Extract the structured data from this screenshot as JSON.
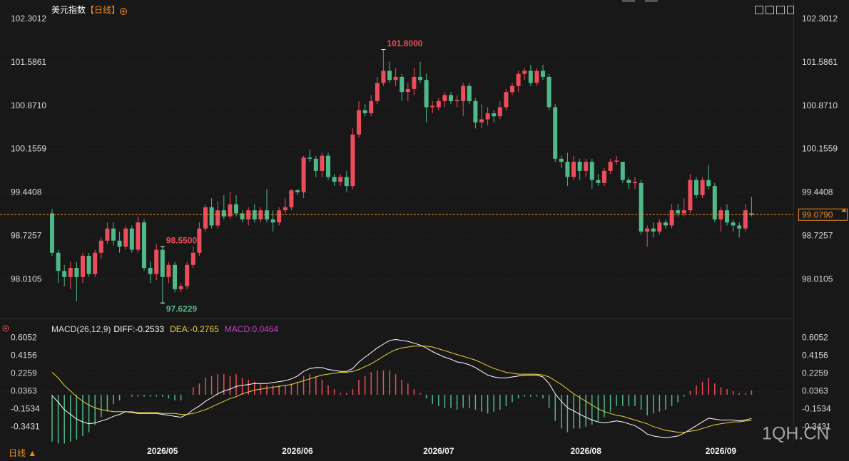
{
  "chart_data": [
    {
      "type": "candlestick",
      "title": "美元指数",
      "period": "【日线】",
      "categories": [
        null,
        null,
        null,
        null,
        null,
        null,
        null,
        null,
        null,
        null,
        null,
        null,
        null,
        null,
        null,
        null,
        null,
        null,
        "2026/05",
        null,
        null,
        null,
        null,
        null,
        null,
        null,
        null,
        null,
        null,
        null,
        null,
        null,
        null,
        null,
        null,
        null,
        null,
        null,
        null,
        null,
        "2026/06",
        null,
        null,
        null,
        null,
        null,
        null,
        null,
        null,
        null,
        null,
        null,
        null,
        null,
        null,
        null,
        null,
        null,
        null,
        null,
        null,
        null,
        null,
        "2026/07",
        null,
        null,
        null,
        null,
        null,
        null,
        null,
        null,
        null,
        null,
        null,
        null,
        null,
        null,
        null,
        null,
        null,
        null,
        null,
        null,
        null,
        null,
        null,
        "2026/08",
        null,
        null,
        null,
        null,
        null,
        null,
        null,
        null,
        null,
        null,
        null,
        null,
        null,
        null,
        null,
        null,
        null,
        null,
        null,
        null,
        null,
        "2026/09",
        null,
        null,
        null,
        null,
        null
      ],
      "open": [
        99.1,
        98.45,
        98.15,
        98.05,
        98.2,
        98.05,
        98.4,
        98.1,
        98.45,
        98.65,
        98.85,
        98.65,
        98.55,
        98.85,
        98.5,
        98.95,
        98.2,
        98.1,
        98.5,
        98.05,
        98.25,
        97.85,
        97.9,
        98.25,
        98.45,
        98.85,
        99.2,
        98.9,
        99.15,
        99.05,
        99.25,
        99.1,
        99.0,
        99.15,
        99.0,
        99.15,
        99.0,
        98.95,
        99.15,
        99.2,
        99.48,
        99.45,
        100.02,
        100.0,
        99.8,
        100.05,
        99.7,
        99.62,
        99.7,
        99.55,
        100.4,
        100.8,
        100.75,
        100.95,
        101.25,
        101.45,
        101.3,
        101.35,
        101.1,
        101.15,
        101.35,
        101.3,
        100.85,
        100.85,
        100.95,
        101.05,
        100.95,
        100.95,
        101.2,
        100.95,
        100.6,
        100.65,
        100.75,
        100.7,
        100.85,
        101.1,
        101.2,
        101.4,
        101.45,
        101.25,
        101.45,
        101.35,
        100.85,
        100.0,
        99.95,
        99.7,
        99.95,
        99.8,
        99.95,
        99.65,
        99.6,
        99.8,
        99.95,
        99.95,
        99.65,
        99.6,
        99.6,
        98.8,
        98.85,
        98.8,
        98.95,
        98.9,
        99.15,
        99.1,
        99.15,
        99.65,
        99.4,
        99.65,
        99.55,
        99.0,
        99.15,
        98.95,
        98.9,
        98.85,
        99.1
      ],
      "high": [
        99.17,
        98.5,
        98.25,
        98.3,
        98.3,
        98.45,
        98.45,
        98.5,
        98.7,
        98.95,
        98.95,
        98.8,
        98.9,
        98.9,
        99.05,
        99.0,
        98.3,
        98.6,
        98.55,
        98.3,
        98.3,
        97.95,
        98.3,
        98.55,
        98.95,
        99.25,
        99.35,
        99.3,
        99.4,
        99.45,
        99.4,
        99.15,
        99.2,
        99.25,
        99.2,
        99.5,
        99.15,
        99.2,
        99.35,
        99.5,
        99.5,
        100.05,
        100.15,
        100.05,
        100.1,
        100.1,
        99.75,
        99.75,
        99.8,
        100.5,
        100.95,
        100.9,
        101.05,
        101.35,
        101.8,
        101.6,
        101.5,
        101.4,
        101.25,
        101.5,
        101.6,
        101.4,
        100.95,
        101.0,
        101.1,
        101.1,
        101.05,
        101.25,
        101.25,
        101.0,
        100.9,
        100.85,
        100.8,
        100.95,
        101.15,
        101.25,
        101.45,
        101.5,
        101.55,
        101.5,
        101.55,
        101.4,
        100.9,
        100.05,
        100.1,
        100.05,
        100.0,
        100.0,
        100.0,
        99.75,
        99.85,
        100.0,
        100.05,
        99.95,
        99.7,
        99.7,
        99.65,
        98.9,
        98.95,
        99.0,
        99.0,
        99.25,
        99.25,
        99.35,
        99.75,
        99.7,
        99.7,
        99.9,
        99.6,
        99.2,
        99.25,
        99.0,
        98.95,
        99.25,
        99.37
      ],
      "low": [
        98.4,
        97.95,
        97.9,
        97.85,
        97.65,
        97.95,
        98.05,
        98.05,
        98.35,
        98.6,
        98.57,
        98.45,
        98.5,
        98.45,
        98.45,
        98.15,
        97.95,
        98.0,
        97.6229,
        97.95,
        97.8,
        97.8,
        97.85,
        98.2,
        98.4,
        98.8,
        98.85,
        98.85,
        99.0,
        99.0,
        99.05,
        98.95,
        98.9,
        98.95,
        98.95,
        98.95,
        98.8,
        98.9,
        99.1,
        99.15,
        99.4,
        99.35,
        99.95,
        99.7,
        99.7,
        99.65,
        99.55,
        99.55,
        99.45,
        99.5,
        100.35,
        100.7,
        100.7,
        100.9,
        101.2,
        101.25,
        101.2,
        100.95,
        100.95,
        101.05,
        101.25,
        100.6,
        100.75,
        100.8,
        100.85,
        100.9,
        100.85,
        100.7,
        100.9,
        100.5,
        100.5,
        100.55,
        100.6,
        100.65,
        100.8,
        101.05,
        101.1,
        101.3,
        101.2,
        101.2,
        101.3,
        100.8,
        99.95,
        99.85,
        99.55,
        99.65,
        99.65,
        99.7,
        99.5,
        99.55,
        99.55,
        99.75,
        99.9,
        99.6,
        99.5,
        99.5,
        98.75,
        98.55,
        98.7,
        98.75,
        98.85,
        98.85,
        99.05,
        99.05,
        99.1,
        99.35,
        99.35,
        99.5,
        98.95,
        98.8,
        98.9,
        98.8,
        98.7,
        98.8,
        99.05
      ],
      "close": [
        98.45,
        98.15,
        98.05,
        98.2,
        98.05,
        98.4,
        98.1,
        98.45,
        98.65,
        98.85,
        98.65,
        98.55,
        98.85,
        98.5,
        98.95,
        98.2,
        98.1,
        98.5,
        98.05,
        98.25,
        97.85,
        97.9,
        98.25,
        98.45,
        98.85,
        99.2,
        98.9,
        99.15,
        99.05,
        99.25,
        99.1,
        99.0,
        99.15,
        99.0,
        99.15,
        99.0,
        98.95,
        99.15,
        99.2,
        99.48,
        99.45,
        100.02,
        100.0,
        99.8,
        100.05,
        99.7,
        99.62,
        99.7,
        99.55,
        100.4,
        100.8,
        100.75,
        100.95,
        101.25,
        101.45,
        101.3,
        101.35,
        101.1,
        101.15,
        101.35,
        101.3,
        100.85,
        100.87,
        100.95,
        101.05,
        100.95,
        100.97,
        101.2,
        100.95,
        100.6,
        100.65,
        100.75,
        100.7,
        100.85,
        101.1,
        101.2,
        101.4,
        101.45,
        101.25,
        101.45,
        101.35,
        100.85,
        100.0,
        99.95,
        99.7,
        99.95,
        99.8,
        99.95,
        99.65,
        99.6,
        99.8,
        99.95,
        99.97,
        99.65,
        99.6,
        99.62,
        98.8,
        98.85,
        98.8,
        98.95,
        98.9,
        99.15,
        99.1,
        99.15,
        99.65,
        99.4,
        99.65,
        99.55,
        99.0,
        99.15,
        98.95,
        98.9,
        98.85,
        99.15,
        99.079
      ],
      "up_color": "#ec4d5b",
      "down_color": "#4fb98a",
      "ylim": [
        97.39,
        102.5
      ],
      "yticks": [
        102.3012,
        101.5861,
        {
          "value": 100.871,
          "label": "100.8710"
        },
        100.1559,
        99.4408,
        98.7257,
        98.0105
      ],
      "grid": true,
      "last_price": {
        "value": 99.079,
        "label": "99.0790"
      },
      "annotations": [
        {
          "value": 101.8,
          "label": "101.8000"
        },
        {
          "value": 97.6229,
          "label": "97.6229"
        },
        {
          "value": 98.55,
          "label": "98.5500"
        }
      ]
    },
    {
      "type": "macd",
      "title": "MACD(26,12,9)",
      "series": [
        {
          "name": "DIFF:-0.2533",
          "color": "#ffffff",
          "values": [
            -0.01,
            -0.08,
            -0.16,
            -0.21,
            -0.26,
            -0.29,
            -0.31,
            -0.3,
            -0.28,
            -0.26,
            -0.23,
            -0.21,
            -0.18,
            -0.19,
            -0.2,
            -0.2,
            -0.2,
            -0.2,
            -0.21,
            -0.22,
            -0.23,
            -0.24,
            -0.21,
            -0.16,
            -0.12,
            -0.07,
            -0.03,
            0.01,
            0.04,
            0.06,
            0.09,
            0.1,
            0.11,
            0.12,
            0.12,
            0.12,
            0.13,
            0.14,
            0.15,
            0.17,
            0.2,
            0.25,
            0.28,
            0.29,
            0.29,
            0.27,
            0.26,
            0.25,
            0.25,
            0.28,
            0.35,
            0.4,
            0.45,
            0.5,
            0.54,
            0.58,
            0.59,
            0.58,
            0.57,
            0.55,
            0.53,
            0.5,
            0.46,
            0.43,
            0.4,
            0.38,
            0.35,
            0.34,
            0.32,
            0.29,
            0.25,
            0.21,
            0.19,
            0.18,
            0.18,
            0.19,
            0.2,
            0.21,
            0.21,
            0.21,
            0.19,
            0.12,
            0.01,
            -0.07,
            -0.14,
            -0.17,
            -0.21,
            -0.24,
            -0.27,
            -0.29,
            -0.3,
            -0.29,
            -0.28,
            -0.29,
            -0.31,
            -0.33,
            -0.37,
            -0.42,
            -0.44,
            -0.45,
            -0.46,
            -0.45,
            -0.44,
            -0.41,
            -0.37,
            -0.33,
            -0.29,
            -0.25,
            -0.26,
            -0.27,
            -0.27,
            -0.27,
            -0.28,
            -0.27,
            -0.2533
          ]
        },
        {
          "name": "DEA:-0.2765",
          "color": "#e6d33a",
          "values": [
            0.24,
            0.18,
            0.1,
            0.04,
            -0.02,
            -0.07,
            -0.11,
            -0.14,
            -0.16,
            -0.17,
            -0.18,
            -0.18,
            -0.18,
            -0.18,
            -0.19,
            -0.19,
            -0.19,
            -0.19,
            -0.2,
            -0.2,
            -0.2,
            -0.21,
            -0.21,
            -0.2,
            -0.18,
            -0.16,
            -0.13,
            -0.1,
            -0.07,
            -0.04,
            -0.02,
            0.01,
            0.03,
            0.05,
            0.06,
            0.07,
            0.08,
            0.09,
            0.1,
            0.11,
            0.13,
            0.15,
            0.17,
            0.19,
            0.21,
            0.22,
            0.23,
            0.24,
            0.24,
            0.25,
            0.27,
            0.3,
            0.33,
            0.37,
            0.41,
            0.45,
            0.48,
            0.5,
            0.51,
            0.52,
            0.52,
            0.52,
            0.51,
            0.49,
            0.47,
            0.45,
            0.43,
            0.41,
            0.39,
            0.37,
            0.34,
            0.31,
            0.28,
            0.26,
            0.24,
            0.23,
            0.22,
            0.22,
            0.22,
            0.22,
            0.21,
            0.19,
            0.15,
            0.11,
            0.06,
            0.01,
            -0.03,
            -0.07,
            -0.11,
            -0.15,
            -0.18,
            -0.2,
            -0.22,
            -0.23,
            -0.25,
            -0.27,
            -0.29,
            -0.31,
            -0.34,
            -0.36,
            -0.38,
            -0.39,
            -0.4,
            -0.4,
            -0.39,
            -0.38,
            -0.36,
            -0.34,
            -0.32,
            -0.31,
            -0.3,
            -0.29,
            -0.29,
            -0.28,
            -0.2765
          ]
        },
        {
          "name": "MACD:0.0464",
          "color": "#c83fd0",
          "values": [
            -0.5,
            -0.52,
            -0.52,
            -0.5,
            -0.48,
            -0.44,
            -0.4,
            -0.32,
            -0.24,
            -0.18,
            -0.1,
            -0.06,
            0.0,
            -0.02,
            -0.02,
            -0.02,
            -0.02,
            -0.02,
            -0.02,
            -0.04,
            -0.06,
            -0.06,
            0.0,
            0.08,
            0.12,
            0.18,
            0.2,
            0.22,
            0.22,
            0.2,
            0.22,
            0.18,
            0.16,
            0.14,
            0.12,
            0.1,
            0.1,
            0.1,
            0.1,
            0.12,
            0.14,
            0.2,
            0.22,
            0.2,
            0.16,
            0.1,
            0.06,
            0.02,
            0.02,
            0.06,
            0.16,
            0.2,
            0.24,
            0.26,
            0.26,
            0.26,
            0.22,
            0.16,
            0.12,
            0.06,
            0.02,
            -0.04,
            -0.1,
            -0.12,
            -0.14,
            -0.14,
            -0.16,
            -0.14,
            -0.14,
            -0.16,
            -0.18,
            -0.2,
            -0.18,
            -0.16,
            -0.12,
            -0.08,
            -0.04,
            -0.02,
            -0.02,
            -0.02,
            -0.04,
            -0.14,
            -0.28,
            -0.36,
            -0.4,
            -0.36,
            -0.36,
            -0.34,
            -0.32,
            -0.28,
            -0.24,
            -0.18,
            -0.12,
            -0.12,
            -0.12,
            -0.12,
            -0.16,
            -0.22,
            -0.2,
            -0.18,
            -0.16,
            -0.12,
            -0.08,
            -0.02,
            0.04,
            0.1,
            0.14,
            0.18,
            0.12,
            0.08,
            0.06,
            0.04,
            0.02,
            0.02,
            0.0464
          ]
        }
      ],
      "up_color": "#ec4d5b",
      "down_color": "#4fb98a",
      "ylim": [
        -0.54,
        0.7
      ],
      "yticks": [
        0.6052,
        0.4156,
        0.2259,
        0.0363,
        -0.1534,
        -0.3431
      ],
      "grid": true
    }
  ],
  "footer": {
    "period_switch": "日线 ▲"
  },
  "watermark": "1QH.CN"
}
